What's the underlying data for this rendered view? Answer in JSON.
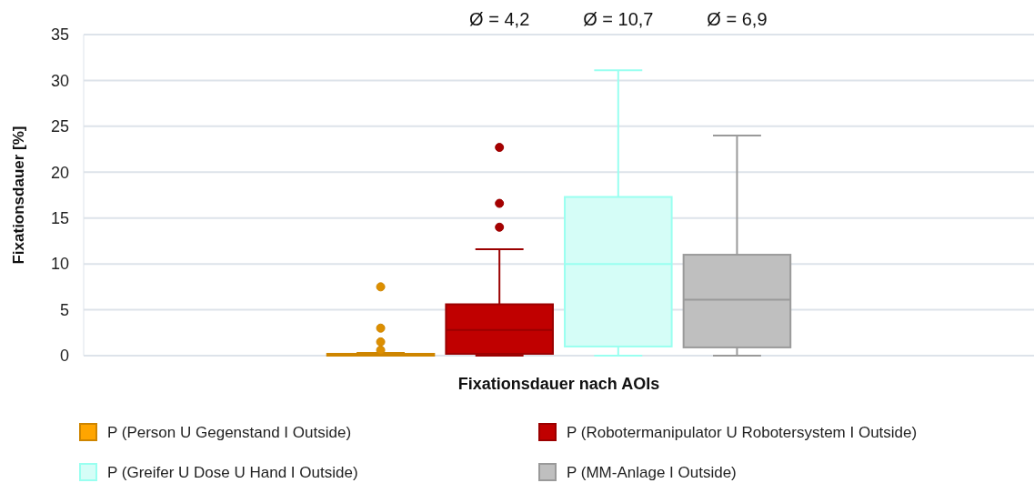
{
  "chart_data": {
    "type": "box",
    "xlabel": "Fixationsdauer nach AOIs",
    "ylabel": "Fixationsdauer [%]",
    "categories": [
      null
    ],
    "ylim": [
      0,
      35
    ],
    "yticks": [
      0,
      5,
      10,
      15,
      20,
      25,
      30,
      35
    ],
    "grid": "y",
    "legend": "bottom",
    "annotations": [
      "Ø = 4,2",
      "Ø = 10,7",
      "Ø = 6,9"
    ],
    "series": [
      {
        "name": "P (Person U Gegenstand I Outside)",
        "color": "#ffa500",
        "boxes": [
          {
            "low": 0,
            "q1": 0,
            "median": 0,
            "q3": 0.2,
            "high": 0.3,
            "outliers": [
              0.6,
              1.5,
              3.0,
              7.5
            ]
          }
        ]
      },
      {
        "name": "P (Robotermanipulator U Robotersystem I Outside)",
        "color": "#c00000",
        "boxes": [
          {
            "low": 0,
            "q1": 0.2,
            "median": 2.8,
            "q3": 5.6,
            "high": 11.6,
            "outliers": [
              14.0,
              16.6,
              22.7
            ]
          }
        ]
      },
      {
        "name": "P (Greifer U Dose U Hand I Outside)",
        "color": "#d5fdf7",
        "boxes": [
          {
            "low": 0,
            "q1": 1.0,
            "median": 10.0,
            "q3": 17.3,
            "high": 31.1
          }
        ]
      },
      {
        "name": "P (MM-Anlage I Outside)",
        "color": "#bfbfbf",
        "boxes": [
          {
            "low": 0,
            "q1": 0.9,
            "median": 6.1,
            "q3": 11.0,
            "high": 24.0
          }
        ]
      }
    ]
  }
}
